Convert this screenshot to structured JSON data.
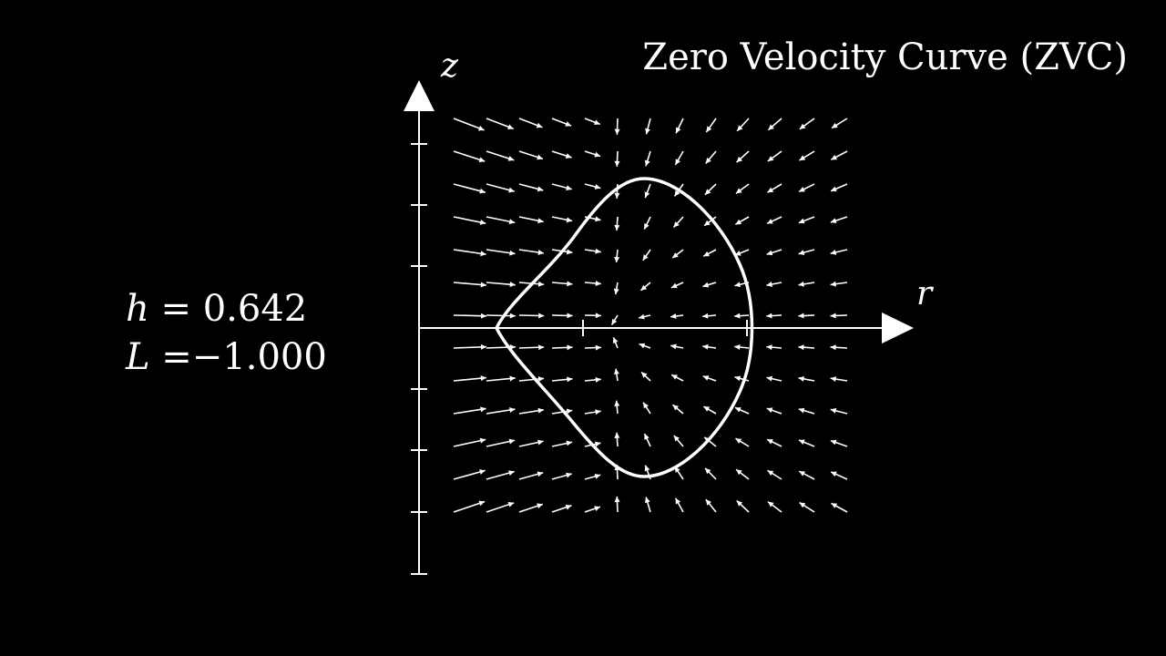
{
  "title": "Zero Velocity Curve (ZVC)",
  "params": {
    "h_symbol": "h",
    "h_eq": " = ",
    "h_value": "0.642",
    "L_symbol": "L",
    "L_eq": " =",
    "L_value": "−1.000"
  },
  "axes": {
    "x_label": "r",
    "y_label": "z"
  },
  "colors": {
    "background": "#000000",
    "foreground": "#ffffff"
  }
}
